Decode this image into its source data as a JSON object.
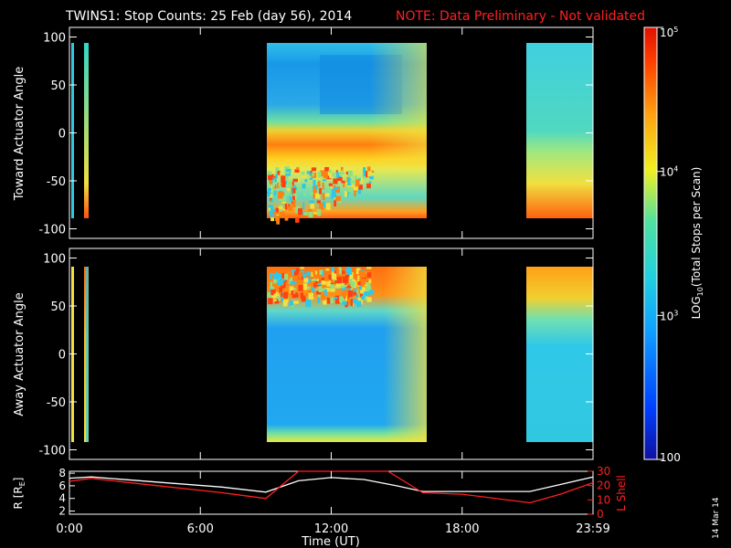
{
  "title": {
    "main": "TWINS1: Stop Counts: 25 Feb (day  56), 2014",
    "note": "NOTE: Data Preliminary - Not validated"
  },
  "chart_data": [
    {
      "type": "heatmap",
      "ylabel": "Toward Actuator Angle",
      "ylim": [
        -110,
        110
      ],
      "yticks": [
        -100,
        -50,
        0,
        50,
        100
      ],
      "data_blocks": [
        {
          "t_start": 0.1,
          "t_end": 0.5
        },
        {
          "t_start": 9.0,
          "t_end": 16.2
        },
        {
          "t_start": 21.1,
          "t_end": 24.0
        }
      ]
    },
    {
      "type": "heatmap",
      "ylabel": "Away Actuator Angle",
      "ylim": [
        -110,
        110
      ],
      "yticks": [
        -100,
        -50,
        0,
        50,
        100
      ],
      "data_blocks": [
        {
          "t_start": 0.1,
          "t_end": 0.5
        },
        {
          "t_start": 9.0,
          "t_end": 16.2
        },
        {
          "t_start": 21.1,
          "t_end": 24.0
        }
      ]
    },
    {
      "type": "line",
      "ylabel_left": "R [R",
      "ylabel_left_sub": "E",
      "ylabel_left_end": "]",
      "ylabel_right": "L Shell",
      "y_left_ticks": [
        2,
        4,
        6,
        8
      ],
      "y_left_range": [
        1.5,
        8.3
      ],
      "y_right_ticks": [
        0,
        10,
        20,
        30
      ],
      "y_right_range": [
        0,
        30
      ],
      "series": [
        {
          "axis": "left",
          "color": "#ffffff",
          "x": [
            0,
            1,
            4,
            7,
            9,
            10.5,
            12,
            13.5,
            15,
            16.2,
            18,
            21.1,
            22.5,
            24
          ],
          "y": [
            7.2,
            7.4,
            6.6,
            5.8,
            5.0,
            6.8,
            7.3,
            7.0,
            6.0,
            5.1,
            5.1,
            5.1,
            6.2,
            7.4
          ]
        },
        {
          "axis": "right",
          "color": "#ff2020",
          "x": [
            0,
            1,
            4,
            7,
            9,
            10.5,
            14.6,
            16.2,
            18,
            21.1,
            22.5,
            24
          ],
          "y": [
            23,
            25,
            20,
            15,
            11,
            30,
            30,
            15,
            14,
            8,
            14,
            22
          ]
        }
      ]
    }
  ],
  "x_axis": {
    "label": "Time (UT)",
    "xlim": [
      0,
      24
    ],
    "ticks": [
      {
        "t": 0,
        "label": "0:00"
      },
      {
        "t": 6,
        "label": "6:00"
      },
      {
        "t": 12,
        "label": "12:00"
      },
      {
        "t": 18,
        "label": "18:00"
      },
      {
        "t": 24,
        "label": "23:59"
      }
    ]
  },
  "colorbar": {
    "label": "LOG",
    "label_sub": "10",
    "label_end": "(Total Stops per Scan)",
    "scale": "log",
    "range": [
      100,
      100000
    ],
    "ticks": [
      {
        "value": 100,
        "base": "100",
        "exp": ""
      },
      {
        "value": 1000,
        "base": "10",
        "exp": "3"
      },
      {
        "value": 10000,
        "base": "10",
        "exp": "4"
      },
      {
        "value": 100000,
        "base": "10",
        "exp": "5"
      }
    ]
  },
  "footer": {
    "date": "14 Mar 14"
  }
}
